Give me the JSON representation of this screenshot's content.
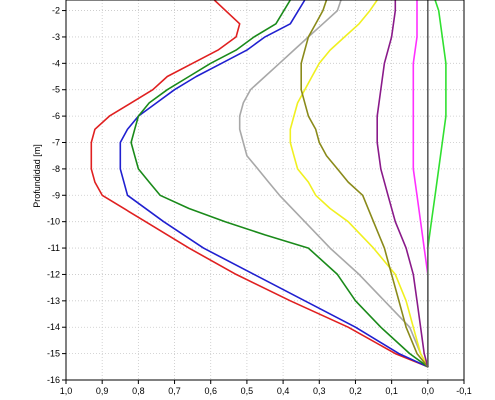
{
  "chart_data": {
    "type": "line",
    "ylabel": "Profundidad [m]",
    "xlabel": "",
    "xlim": [
      1.0,
      -0.1
    ],
    "ylim": [
      -16,
      -1.6
    ],
    "x_ticks": [
      "1,0",
      "0,9",
      "0,8",
      "0,7",
      "0,6",
      "0,5",
      "0,4",
      "0,3",
      "0,2",
      "0,1",
      "0,0",
      "-0,1"
    ],
    "x_tick_values": [
      1.0,
      0.9,
      0.8,
      0.7,
      0.6,
      0.5,
      0.4,
      0.3,
      0.2,
      0.1,
      0.0,
      -0.1
    ],
    "y_ticks": [
      "-2",
      "-3",
      "-4",
      "-5",
      "-6",
      "-7",
      "-8",
      "-9",
      "-10",
      "-11",
      "-12",
      "-13",
      "-14",
      "-15",
      "-16"
    ],
    "y_tick_values": [
      -2,
      -3,
      -4,
      -5,
      -6,
      -7,
      -8,
      -9,
      -10,
      -11,
      -12,
      -13,
      -14,
      -15,
      -16
    ],
    "grid": true,
    "legend": "none",
    "series": [
      {
        "color": "#e02020",
        "points": [
          [
            0.59,
            -1.6
          ],
          [
            0.52,
            -2.5
          ],
          [
            0.53,
            -3.0
          ],
          [
            0.58,
            -3.5
          ],
          [
            0.65,
            -4.0
          ],
          [
            0.72,
            -4.5
          ],
          [
            0.76,
            -5.0
          ],
          [
            0.82,
            -5.5
          ],
          [
            0.88,
            -6.0
          ],
          [
            0.92,
            -6.5
          ],
          [
            0.93,
            -7.0
          ],
          [
            0.93,
            -7.5
          ],
          [
            0.93,
            -8.0
          ],
          [
            0.92,
            -8.5
          ],
          [
            0.9,
            -9.0
          ],
          [
            0.78,
            -10.0
          ],
          [
            0.66,
            -11.0
          ],
          [
            0.53,
            -12.0
          ],
          [
            0.38,
            -13.0
          ],
          [
            0.22,
            -14.0
          ],
          [
            0.09,
            -15.0
          ],
          [
            0.0,
            -15.5
          ]
        ]
      },
      {
        "color": "#2020d0",
        "points": [
          [
            0.34,
            -1.6
          ],
          [
            0.38,
            -2.5
          ],
          [
            0.45,
            -3.0
          ],
          [
            0.5,
            -3.5
          ],
          [
            0.57,
            -4.0
          ],
          [
            0.64,
            -4.5
          ],
          [
            0.7,
            -5.0
          ],
          [
            0.75,
            -5.5
          ],
          [
            0.8,
            -6.0
          ],
          [
            0.83,
            -6.5
          ],
          [
            0.85,
            -7.0
          ],
          [
            0.85,
            -7.5
          ],
          [
            0.85,
            -8.0
          ],
          [
            0.84,
            -8.5
          ],
          [
            0.83,
            -9.0
          ],
          [
            0.73,
            -10.0
          ],
          [
            0.62,
            -11.0
          ],
          [
            0.48,
            -12.0
          ],
          [
            0.34,
            -13.0
          ],
          [
            0.2,
            -14.0
          ],
          [
            0.08,
            -15.0
          ],
          [
            0.0,
            -15.5
          ]
        ]
      },
      {
        "color": "#1a8a1a",
        "points": [
          [
            0.38,
            -1.6
          ],
          [
            0.42,
            -2.5
          ],
          [
            0.48,
            -3.0
          ],
          [
            0.53,
            -3.5
          ],
          [
            0.6,
            -4.0
          ],
          [
            0.66,
            -4.5
          ],
          [
            0.72,
            -5.0
          ],
          [
            0.77,
            -5.5
          ],
          [
            0.8,
            -6.0
          ],
          [
            0.81,
            -6.5
          ],
          [
            0.82,
            -7.0
          ],
          [
            0.81,
            -7.5
          ],
          [
            0.8,
            -8.0
          ],
          [
            0.77,
            -8.5
          ],
          [
            0.74,
            -9.0
          ],
          [
            0.66,
            -9.5
          ],
          [
            0.56,
            -10.0
          ],
          [
            0.45,
            -10.5
          ],
          [
            0.33,
            -11.0
          ],
          [
            0.25,
            -12.0
          ],
          [
            0.2,
            -13.0
          ],
          [
            0.13,
            -14.0
          ],
          [
            0.05,
            -15.0
          ],
          [
            0.0,
            -15.5
          ]
        ]
      },
      {
        "color": "#a8a8a8",
        "points": [
          [
            0.24,
            -1.6
          ],
          [
            0.25,
            -2.0
          ],
          [
            0.29,
            -2.5
          ],
          [
            0.33,
            -3.0
          ],
          [
            0.37,
            -3.5
          ],
          [
            0.41,
            -4.0
          ],
          [
            0.45,
            -4.5
          ],
          [
            0.49,
            -5.0
          ],
          [
            0.51,
            -5.5
          ],
          [
            0.52,
            -6.0
          ],
          [
            0.52,
            -6.5
          ],
          [
            0.51,
            -7.0
          ],
          [
            0.5,
            -7.5
          ],
          [
            0.47,
            -8.0
          ],
          [
            0.44,
            -8.5
          ],
          [
            0.41,
            -9.0
          ],
          [
            0.34,
            -10.0
          ],
          [
            0.27,
            -11.0
          ],
          [
            0.19,
            -12.0
          ],
          [
            0.12,
            -13.0
          ],
          [
            0.05,
            -14.0
          ],
          [
            0.02,
            -15.0
          ],
          [
            0.0,
            -15.5
          ]
        ]
      },
      {
        "color": "#f0f020",
        "points": [
          [
            0.14,
            -1.6
          ],
          [
            0.16,
            -2.0
          ],
          [
            0.19,
            -2.5
          ],
          [
            0.23,
            -3.0
          ],
          [
            0.27,
            -3.5
          ],
          [
            0.3,
            -4.0
          ],
          [
            0.32,
            -4.5
          ],
          [
            0.34,
            -5.0
          ],
          [
            0.36,
            -5.5
          ],
          [
            0.37,
            -6.0
          ],
          [
            0.38,
            -6.5
          ],
          [
            0.38,
            -7.0
          ],
          [
            0.37,
            -7.5
          ],
          [
            0.36,
            -8.0
          ],
          [
            0.33,
            -8.5
          ],
          [
            0.31,
            -9.0
          ],
          [
            0.27,
            -9.5
          ],
          [
            0.22,
            -10.0
          ],
          [
            0.15,
            -11.0
          ],
          [
            0.09,
            -12.0
          ],
          [
            0.06,
            -13.0
          ],
          [
            0.04,
            -14.0
          ],
          [
            0.02,
            -15.0
          ],
          [
            0.0,
            -15.5
          ]
        ]
      },
      {
        "color": "#8a8a1a",
        "points": [
          [
            0.28,
            -1.6
          ],
          [
            0.29,
            -2.0
          ],
          [
            0.31,
            -2.5
          ],
          [
            0.33,
            -3.0
          ],
          [
            0.34,
            -3.5
          ],
          [
            0.35,
            -4.0
          ],
          [
            0.35,
            -4.5
          ],
          [
            0.35,
            -5.0
          ],
          [
            0.34,
            -5.5
          ],
          [
            0.33,
            -6.0
          ],
          [
            0.31,
            -6.5
          ],
          [
            0.3,
            -7.0
          ],
          [
            0.28,
            -7.5
          ],
          [
            0.25,
            -8.0
          ],
          [
            0.22,
            -8.5
          ],
          [
            0.18,
            -9.0
          ],
          [
            0.15,
            -10.0
          ],
          [
            0.12,
            -11.0
          ],
          [
            0.1,
            -12.0
          ],
          [
            0.08,
            -13.0
          ],
          [
            0.06,
            -14.0
          ],
          [
            0.03,
            -15.0
          ],
          [
            0.0,
            -15.5
          ]
        ]
      },
      {
        "color": "#8a1a8a",
        "points": [
          [
            0.09,
            -1.6
          ],
          [
            0.09,
            -2.0
          ],
          [
            0.1,
            -3.0
          ],
          [
            0.12,
            -4.0
          ],
          [
            0.13,
            -5.0
          ],
          [
            0.14,
            -6.0
          ],
          [
            0.14,
            -7.0
          ],
          [
            0.13,
            -8.0
          ],
          [
            0.11,
            -9.0
          ],
          [
            0.09,
            -10.0
          ],
          [
            0.06,
            -11.0
          ],
          [
            0.04,
            -12.0
          ],
          [
            0.03,
            -13.0
          ],
          [
            0.02,
            -14.0
          ],
          [
            0.01,
            -15.0
          ],
          [
            0.0,
            -15.5
          ]
        ]
      },
      {
        "color": "#ff30ff",
        "points": [
          [
            0.03,
            -1.6
          ],
          [
            0.03,
            -2.0
          ],
          [
            0.03,
            -3.0
          ],
          [
            0.04,
            -4.0
          ],
          [
            0.04,
            -5.0
          ],
          [
            0.04,
            -6.0
          ],
          [
            0.04,
            -7.0
          ],
          [
            0.04,
            -8.0
          ],
          [
            0.03,
            -9.0
          ],
          [
            0.02,
            -10.0
          ],
          [
            0.01,
            -11.0
          ],
          [
            0.0,
            -12.0
          ],
          [
            0.0,
            -13.0
          ],
          [
            0.0,
            -14.0
          ],
          [
            0.0,
            -15.0
          ],
          [
            0.0,
            -15.5
          ]
        ]
      },
      {
        "color": "#30e030",
        "points": [
          [
            -0.02,
            -1.6
          ],
          [
            -0.03,
            -2.0
          ],
          [
            -0.04,
            -3.0
          ],
          [
            -0.05,
            -4.0
          ],
          [
            -0.05,
            -5.0
          ],
          [
            -0.05,
            -6.0
          ],
          [
            -0.04,
            -7.0
          ],
          [
            -0.03,
            -8.0
          ],
          [
            -0.02,
            -9.0
          ],
          [
            -0.01,
            -10.0
          ],
          [
            0.0,
            -11.0
          ],
          [
            0.0,
            -12.0
          ],
          [
            0.0,
            -13.0
          ],
          [
            0.0,
            -14.0
          ],
          [
            0.0,
            -15.0
          ],
          [
            0.0,
            -15.5
          ]
        ]
      },
      {
        "color": "#606060",
        "points": [
          [
            0.0,
            -1.6
          ],
          [
            0.0,
            -15.5
          ]
        ]
      }
    ]
  }
}
